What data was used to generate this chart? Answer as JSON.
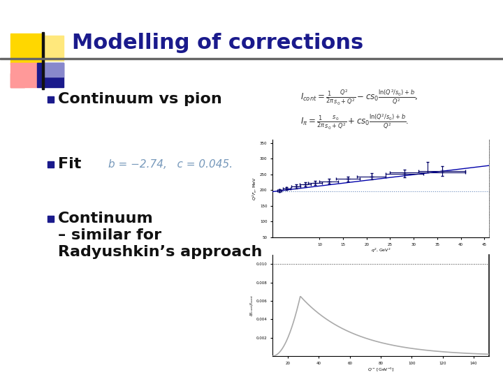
{
  "title": "Modelling of corrections",
  "title_color": "#1a1a8c",
  "title_fontsize": 22,
  "bg_color": "#ffffff",
  "bullet1": "Continuum vs pion",
  "bullet2": "Fit",
  "bullet3_line1": "Continuum",
  "bullet3_line2": "– similar for",
  "bullet3_line3": "Radyushkin’s approach",
  "bullet_color": "#111111",
  "bullet_fontsize": 16,
  "bullet_square_color": "#1a1a8c",
  "fit_text": "b = −2.74,   c = 0.045.",
  "fit_text_color": "#7799bb",
  "fit_text_fontsize": 11,
  "separator_color": "#666666",
  "formula_color": "#333333",
  "formula_fontsize": 8.5,
  "logo_yellow": "#FFD700",
  "logo_lightyellow": "#FFE87C",
  "logo_pink_r": "#dd4444",
  "logo_pink_l": "#ff9999",
  "logo_blue_dark": "#1a1a8c",
  "logo_blue_light": "#8888cc"
}
